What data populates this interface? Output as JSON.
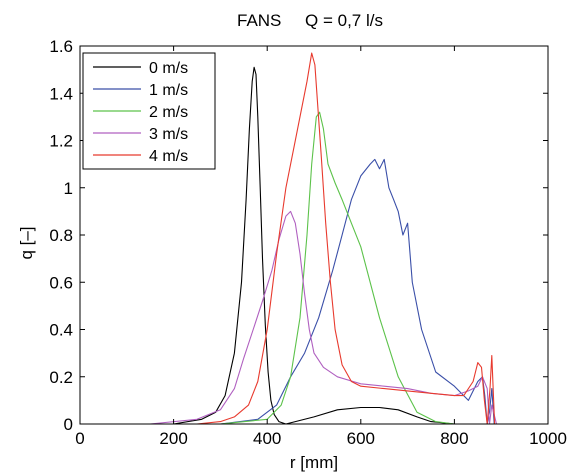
{
  "chart_data": {
    "type": "line",
    "title": "FANS     Q = 0,7 l/s",
    "xlabel": "r [mm]",
    "ylabel": "q [–]",
    "xlim": [
      0,
      1000
    ],
    "ylim": [
      0,
      1.6
    ],
    "xticks": [
      0,
      200,
      400,
      600,
      800,
      1000
    ],
    "yticks": [
      0,
      0.2,
      0.4,
      0.6,
      0.8,
      1,
      1.2,
      1.4,
      1.6
    ],
    "grid": false,
    "legend_position": "top-left",
    "series": [
      {
        "name": "0 m/s",
        "color": "#000000",
        "x": [
          0,
          200,
          260,
          290,
          310,
          330,
          345,
          355,
          362,
          368,
          372,
          376,
          380,
          385,
          390,
          396,
          402,
          408,
          415,
          425,
          440,
          460,
          500,
          550,
          600,
          640,
          680,
          720,
          750,
          800,
          900
        ],
        "y": [
          0,
          0,
          0.02,
          0.05,
          0.12,
          0.3,
          0.6,
          0.95,
          1.25,
          1.45,
          1.51,
          1.48,
          1.3,
          1.0,
          0.7,
          0.42,
          0.22,
          0.1,
          0.04,
          0.01,
          0.0,
          0.01,
          0.03,
          0.06,
          0.07,
          0.07,
          0.06,
          0.03,
          0.01,
          0,
          0
        ]
      },
      {
        "name": "1 m/s",
        "color": "#3a4fa8",
        "x": [
          0,
          200,
          300,
          380,
          420,
          450,
          480,
          510,
          540,
          560,
          580,
          600,
          620,
          630,
          640,
          650,
          660,
          670,
          680,
          690,
          700,
          710,
          730,
          760,
          800,
          830,
          850,
          860,
          865,
          870,
          875,
          880,
          885,
          900,
          1000
        ],
        "y": [
          0,
          0,
          0,
          0.02,
          0.08,
          0.2,
          0.3,
          0.45,
          0.65,
          0.8,
          0.95,
          1.05,
          1.1,
          1.12,
          1.08,
          1.12,
          1.0,
          0.95,
          0.9,
          0.8,
          0.85,
          0.6,
          0.4,
          0.22,
          0.16,
          0.1,
          0.18,
          0.2,
          0.12,
          0.0,
          0.05,
          0.15,
          0.0,
          0,
          0
        ]
      },
      {
        "name": "2 m/s",
        "color": "#5cc24a",
        "x": [
          0,
          300,
          400,
          430,
          450,
          470,
          485,
          495,
          505,
          512,
          520,
          530,
          545,
          560,
          580,
          600,
          640,
          680,
          720,
          760,
          800,
          900
        ],
        "y": [
          0,
          0,
          0.02,
          0.08,
          0.2,
          0.45,
          0.8,
          1.1,
          1.3,
          1.32,
          1.25,
          1.1,
          1.02,
          0.95,
          0.85,
          0.75,
          0.45,
          0.2,
          0.05,
          0.01,
          0,
          0
        ]
      },
      {
        "name": "3 m/s",
        "color": "#b060c0",
        "x": [
          0,
          150,
          250,
          300,
          330,
          350,
          370,
          390,
          410,
          425,
          440,
          450,
          460,
          470,
          480,
          490,
          500,
          520,
          550,
          600,
          650,
          700,
          750,
          800,
          830,
          850,
          860,
          870,
          875,
          880,
          890,
          1000
        ],
        "y": [
          0,
          0,
          0.02,
          0.06,
          0.15,
          0.28,
          0.4,
          0.52,
          0.65,
          0.78,
          0.88,
          0.9,
          0.85,
          0.72,
          0.55,
          0.4,
          0.3,
          0.24,
          0.2,
          0.17,
          0.16,
          0.15,
          0.13,
          0.12,
          0.14,
          0.16,
          0.2,
          0.15,
          0.0,
          0.08,
          0.0,
          0
        ]
      },
      {
        "name": "4 m/s",
        "color": "#e83a2e",
        "x": [
          0,
          250,
          300,
          330,
          360,
          380,
          400,
          420,
          440,
          460,
          475,
          485,
          495,
          502,
          508,
          515,
          525,
          535,
          545,
          560,
          580,
          600,
          650,
          700,
          750,
          800,
          820,
          840,
          850,
          858,
          864,
          870,
          876,
          880,
          886,
          1000
        ],
        "y": [
          0,
          0,
          0.01,
          0.03,
          0.08,
          0.18,
          0.4,
          0.72,
          1.0,
          1.2,
          1.35,
          1.45,
          1.57,
          1.52,
          1.35,
          1.15,
          0.85,
          0.6,
          0.4,
          0.25,
          0.18,
          0.16,
          0.15,
          0.14,
          0.13,
          0.12,
          0.12,
          0.18,
          0.26,
          0.24,
          0.1,
          0.0,
          0.15,
          0.29,
          0.0,
          0
        ]
      }
    ]
  }
}
